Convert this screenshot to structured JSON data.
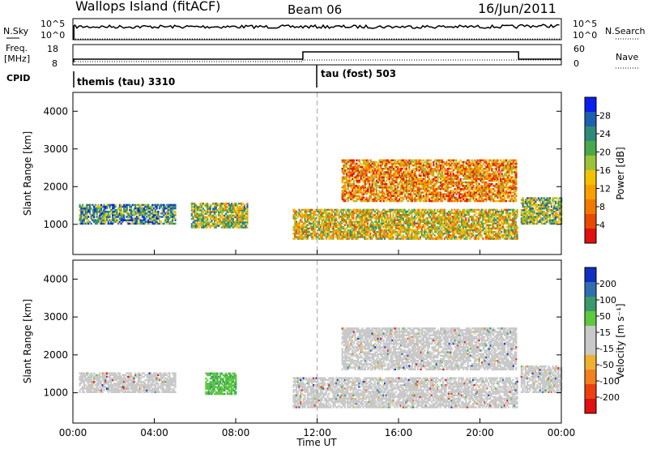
{
  "header": {
    "station": "Wallops Island (fitACF)",
    "beam": "Beam 06",
    "date": "16/Jun/2011"
  },
  "mini_panels": {
    "nsky_label": "N.Sky",
    "nsky_ticks": [
      "10^5",
      "10^0"
    ],
    "nsearch_label": "N.Search",
    "nsearch_ticks": [
      "10^5",
      "10^0"
    ],
    "freq_label_line1": "Freq.",
    "freq_label_line2": "[MHz]",
    "freq_ticks": [
      "18",
      "8"
    ],
    "nave_label": "Nave",
    "nave_ticks": [
      "60",
      "0"
    ],
    "cpid_label": "CPID",
    "cpid_segments": [
      {
        "name": "themis (tau) 3310",
        "start_hour": 0
      },
      {
        "name": "tau (fost) 503",
        "start_hour": 12
      }
    ]
  },
  "chart_data": [
    {
      "type": "heatmap",
      "title": "",
      "xlabel": "",
      "ylabel": "Slant Range [km]",
      "xlim": [
        0,
        24
      ],
      "ylim": [
        200,
        4500
      ],
      "yticks": [
        1000,
        2000,
        3000,
        4000
      ],
      "colorbar": {
        "label": "Power [dB]",
        "ticks": [
          "28",
          "24",
          "20",
          "16",
          "12",
          "8",
          "4"
        ],
        "colors": [
          "#0a1ef0",
          "#1f5fb0",
          "#2e8a7a",
          "#4aa84a",
          "#9cc23a",
          "#f2c200",
          "#f7a000",
          "#f07a00",
          "#e84a00",
          "#e01010"
        ]
      },
      "regions": [
        {
          "t0": 0.3,
          "t1": 5.0,
          "r0": 1000,
          "r1": 1500,
          "level": 0.7
        },
        {
          "t0": 5.8,
          "t1": 8.6,
          "r0": 900,
          "r1": 1550,
          "level": 0.55
        },
        {
          "t0": 10.8,
          "t1": 21.8,
          "r0": 600,
          "r1": 1400,
          "level": 0.45
        },
        {
          "t0": 13.2,
          "t1": 21.8,
          "r0": 1600,
          "r1": 2700,
          "level": 0.3
        },
        {
          "t0": 22.0,
          "t1": 24.0,
          "r0": 1000,
          "r1": 1700,
          "level": 0.6
        }
      ]
    },
    {
      "type": "heatmap",
      "title": "",
      "xlabel": "Time UT",
      "ylabel": "Slant Range [km]",
      "xlim": [
        0,
        24
      ],
      "ylim": [
        200,
        4500
      ],
      "xticks": [
        "00:00",
        "04:00",
        "08:00",
        "12:00",
        "16:00",
        "20:00",
        "00:00"
      ],
      "yticks": [
        1000,
        2000,
        3000,
        4000
      ],
      "colorbar": {
        "label": "Velocity [m s⁻¹]",
        "ticks": [
          "200",
          "100",
          "50",
          "15",
          "-15",
          "-50",
          "-100",
          "-200"
        ],
        "colors": [
          "#1030c0",
          "#2f6fb0",
          "#3a9a6a",
          "#5ec840",
          "#c9c9c9",
          "#c9c9c9",
          "#f0b030",
          "#f08020",
          "#ec4010",
          "#e01010"
        ]
      },
      "regions": [
        {
          "t0": 0.3,
          "t1": 5.0,
          "r0": 1000,
          "r1": 1500,
          "level": "ground"
        },
        {
          "t0": 6.5,
          "t1": 8.0,
          "r0": 950,
          "r1": 1500,
          "level": "positive"
        },
        {
          "t0": 10.8,
          "t1": 21.8,
          "r0": 600,
          "r1": 1400,
          "level": "ground"
        },
        {
          "t0": 13.2,
          "t1": 21.8,
          "r0": 1600,
          "r1": 2700,
          "level": "ground"
        },
        {
          "t0": 22.0,
          "t1": 24.0,
          "r0": 1000,
          "r1": 1700,
          "level": "ground"
        }
      ]
    }
  ]
}
